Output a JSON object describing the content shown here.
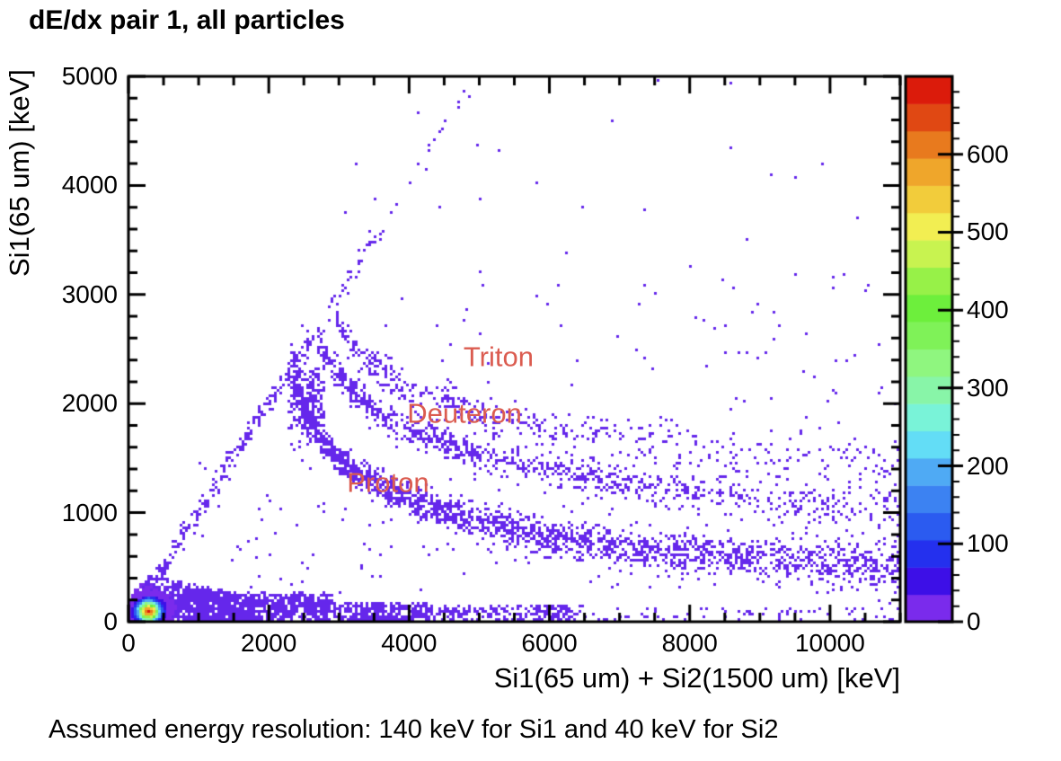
{
  "caption": "Assumed energy resolution: 140 keV for Si1 and 40 keV for Si2",
  "chart_data": {
    "type": "heatmap",
    "title": "dE/dx pair 1, all particles",
    "xlabel": "Si1(65 um) + Si2(1500 um) [keV]",
    "ylabel": "Si1(65 um) [keV]",
    "xlim": [
      0,
      11000
    ],
    "ylim": [
      0,
      5000
    ],
    "grid": false,
    "x_major_ticks": [
      0,
      2000,
      4000,
      6000,
      8000,
      10000
    ],
    "x_minor_step": 500,
    "y_major_ticks": [
      0,
      1000,
      2000,
      3000,
      4000,
      5000
    ],
    "y_minor_step": 200,
    "point_color": "#6527EB",
    "annotation_color": "#DB5C50",
    "annotations": [
      {
        "text": "Triton",
        "x": 5275,
        "y": 2430
      },
      {
        "text": "Deuteron",
        "x": 4790,
        "y": 1910
      },
      {
        "text": "Proton",
        "x": 3700,
        "y": 1280
      }
    ],
    "colorbar": {
      "min": 0,
      "max": 700,
      "major_ticks": [
        0,
        100,
        200,
        300,
        400,
        500,
        600
      ],
      "minor_step": 20,
      "legend_position": "right",
      "palette_low_to_high": [
        "#7A2BEC",
        "#3D0FE7",
        "#2430EE",
        "#2B5BF0",
        "#3C82F2",
        "#4FAAF4",
        "#63DDF6",
        "#79F3D8",
        "#88F5A8",
        "#8FF67F",
        "#7FF258",
        "#6DEF3C",
        "#97F148",
        "#C8F350",
        "#F2EE52",
        "#F2CC3B",
        "#EFA62B",
        "#E87A1E",
        "#E04813",
        "#DB1B0B"
      ]
    },
    "hot_spot": {
      "x": 290,
      "y": 95,
      "sigma_x": 105,
      "sigma_y": 60,
      "samples": 22000,
      "peak_count": 670
    },
    "bands": [
      {
        "name": "si1-stopped-line",
        "sigma_y": [
          55,
          55
        ],
        "ridge": [
          [
            150,
            150
          ],
          [
            4900,
            4900
          ]
        ],
        "segments": [
          [
            200,
            1000,
            90
          ],
          [
            1000,
            1800,
            80
          ],
          [
            1800,
            2600,
            70
          ],
          [
            2600,
            3600,
            36
          ],
          [
            3600,
            4900,
            16
          ]
        ]
      },
      {
        "name": "punch-through-knot",
        "sigma_y": [
          230,
          230
        ],
        "ridge": [
          [
            2300,
            2050
          ],
          [
            2800,
            2050
          ]
        ],
        "segments": [
          [
            2300,
            2800,
            230
          ]
        ]
      },
      {
        "name": "proton-band",
        "sigma_y": [
          60,
          110
        ],
        "ridge": [
          [
            2350,
            2200
          ],
          [
            2550,
            1900
          ],
          [
            2800,
            1620
          ],
          [
            3100,
            1430
          ],
          [
            3500,
            1270
          ],
          [
            4000,
            1130
          ],
          [
            4500,
            1010
          ],
          [
            5000,
            920
          ],
          [
            5500,
            850
          ],
          [
            6000,
            790
          ],
          [
            6500,
            735
          ],
          [
            7000,
            690
          ],
          [
            7600,
            650
          ],
          [
            8200,
            615
          ],
          [
            8900,
            580
          ],
          [
            9600,
            550
          ],
          [
            10300,
            525
          ],
          [
            11000,
            505
          ]
        ],
        "segments": [
          [
            2350,
            3000,
            240
          ],
          [
            3000,
            4000,
            280
          ],
          [
            4000,
            5500,
            350
          ],
          [
            5500,
            7500,
            400
          ],
          [
            7500,
            9500,
            340
          ],
          [
            9500,
            11000,
            270
          ]
        ]
      },
      {
        "name": "deuteron-band",
        "sigma_y": [
          65,
          115
        ],
        "ridge": [
          [
            2700,
            2600
          ],
          [
            2900,
            2330
          ],
          [
            3200,
            2100
          ],
          [
            3600,
            1900
          ],
          [
            4000,
            1760
          ],
          [
            4500,
            1630
          ],
          [
            5000,
            1530
          ],
          [
            5600,
            1440
          ],
          [
            6300,
            1350
          ],
          [
            7000,
            1280
          ],
          [
            7800,
            1215
          ],
          [
            8600,
            1160
          ],
          [
            9400,
            1115
          ],
          [
            10200,
            1075
          ],
          [
            11000,
            1040
          ]
        ],
        "segments": [
          [
            2700,
            3500,
            160
          ],
          [
            3500,
            5000,
            230
          ],
          [
            5000,
            7000,
            210
          ],
          [
            7000,
            9000,
            150
          ],
          [
            9000,
            11000,
            115
          ]
        ]
      },
      {
        "name": "triton-band",
        "sigma_y": [
          70,
          120
        ],
        "ridge": [
          [
            2950,
            2800
          ],
          [
            3150,
            2580
          ],
          [
            3450,
            2370
          ],
          [
            3800,
            2210
          ],
          [
            4200,
            2080
          ],
          [
            4700,
            1965
          ],
          [
            5300,
            1865
          ],
          [
            6000,
            1775
          ],
          [
            6800,
            1695
          ],
          [
            7700,
            1625
          ],
          [
            8700,
            1565
          ],
          [
            9800,
            1515
          ],
          [
            11000,
            1475
          ]
        ],
        "segments": [
          [
            2950,
            3800,
            100
          ],
          [
            3800,
            5500,
            130
          ],
          [
            5500,
            7500,
            100
          ],
          [
            7500,
            9500,
            62
          ],
          [
            9500,
            11000,
            46
          ]
        ]
      }
    ],
    "wedge": {
      "ymax_profile": [
        [
          120,
          200
        ],
        [
          300,
          430
        ],
        [
          600,
          390
        ],
        [
          1000,
          330
        ],
        [
          1400,
          280
        ],
        [
          1800,
          230
        ]
      ],
      "count": 620
    },
    "bottom_band": {
      "segments": [
        [
          120,
          1500,
          700,
          280
        ],
        [
          1500,
          2900,
          520,
          260
        ],
        [
          2900,
          4300,
          300,
          170
        ],
        [
          4300,
          6500,
          220,
          150
        ],
        [
          6500,
          11000,
          70,
          130
        ]
      ]
    },
    "noise_regions": [
      [
        700,
        11000,
        250,
        1500,
        160
      ],
      [
        2600,
        11000,
        1500,
        3200,
        90
      ],
      [
        3000,
        10500,
        3200,
        5000,
        22
      ]
    ]
  }
}
